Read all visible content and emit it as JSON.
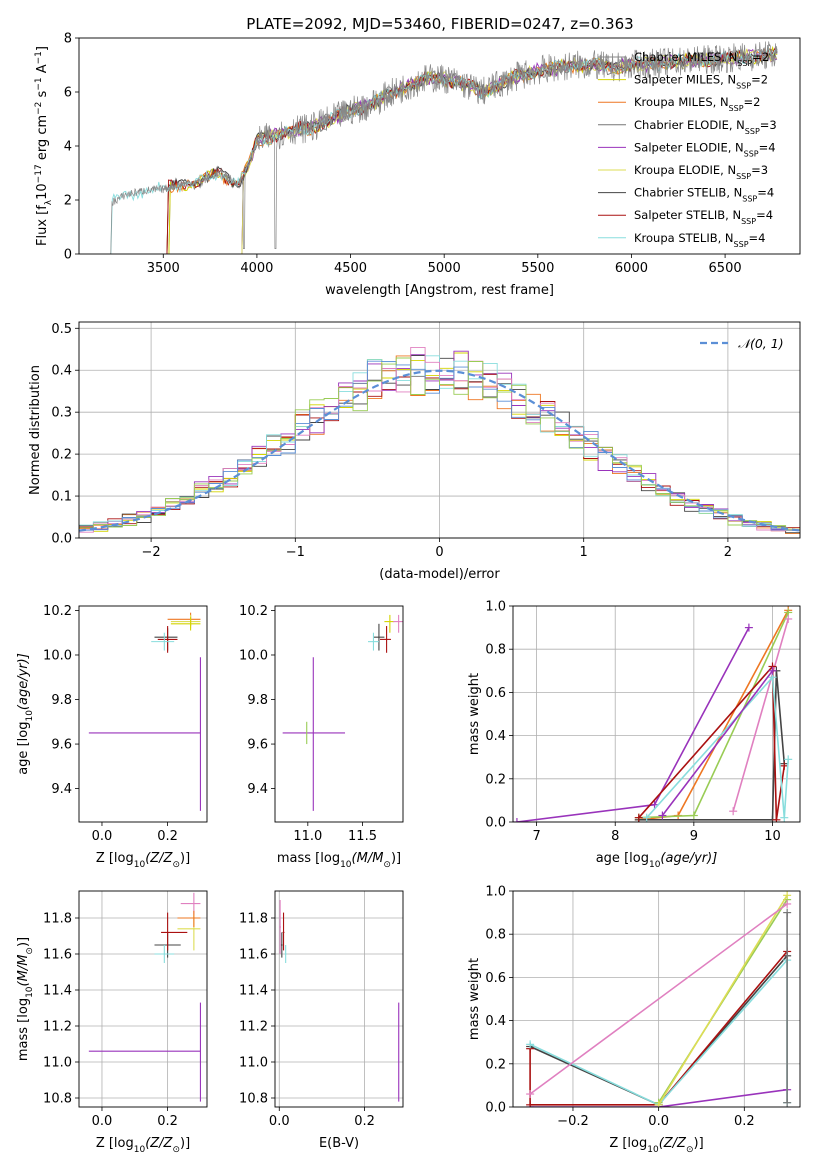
{
  "title": "PLATE=2092, MJD=53460, FIBERID=0247, z=0.363",
  "colors": {
    "chabrier_miles": "#8a8a8a",
    "salpeter_miles": "#d4d400",
    "kroupa_miles": "#ee7722",
    "chabrier_elodie": "#777777",
    "salpeter_elodie": "#9933bb",
    "kroupa_elodie": "#dddd55",
    "chabrier_stelib": "#444444",
    "salpeter_stelib": "#aa1111",
    "kroupa_stelib": "#88dddd",
    "gauss": "#5b8fd6",
    "pink": "#e080c0",
    "green": "#99cc55"
  },
  "chart_data": [
    {
      "type": "line",
      "title": "PLATE=2092, MJD=53460, FIBERID=0247, z=0.363",
      "xlabel": "wavelength [Angstrom, rest frame]",
      "ylabel": "Flux [f",
      "ylabel_sub": "λ",
      "ylabel_rest": "10",
      "ylabel_sup1": "−17",
      "ylabel_mid": " erg cm",
      "ylabel_sup2": "−2",
      "ylabel_mid2": " s",
      "ylabel_sup3": "−1",
      "ylabel_end": " A",
      "ylabel_sup4": "−1",
      "ylabel_close": "]",
      "xlim": [
        3050,
        6900
      ],
      "ylim": [
        0,
        8
      ],
      "xticks": [
        3500,
        4000,
        4500,
        5000,
        5500,
        6000,
        6500
      ],
      "yticks": [
        0,
        2,
        4,
        6,
        8
      ],
      "legend": "upper right",
      "legend_entries": [
        {
          "prefix": "Chabrier MILES, N",
          "sub": "SSP",
          "suffix": "=2",
          "color": "#8a8a8a"
        },
        {
          "prefix": "Salpeter MILES, N",
          "sub": "SSP",
          "suffix": "=2",
          "color": "#d4d400"
        },
        {
          "prefix": "Kroupa MILES, N",
          "sub": "SSP",
          "suffix": "=2",
          "color": "#ee7722"
        },
        {
          "prefix": "Chabrier ELODIE, N",
          "sub": "SSP",
          "suffix": "=3",
          "color": "#777777"
        },
        {
          "prefix": "Salpeter ELODIE, N",
          "sub": "SSP",
          "suffix": "=4",
          "color": "#9933bb"
        },
        {
          "prefix": "Kroupa ELODIE, N",
          "sub": "SSP",
          "suffix": "=3",
          "color": "#dddd55"
        },
        {
          "prefix": "Chabrier STELIB, N",
          "sub": "SSP",
          "suffix": "=4",
          "color": "#444444"
        },
        {
          "prefix": "Salpeter STELIB, N",
          "sub": "SSP",
          "suffix": "=4",
          "color": "#aa1111"
        },
        {
          "prefix": "Kroupa STELIB, N",
          "sub": "SSP",
          "suffix": "=4",
          "color": "#88dddd"
        }
      ],
      "spectrum_knots": [
        [
          3220,
          0
        ],
        [
          3225,
          1.9
        ],
        [
          3300,
          2.2
        ],
        [
          3400,
          2.35
        ],
        [
          3500,
          2.4
        ],
        [
          3600,
          2.6
        ],
        [
          3700,
          2.7
        ],
        [
          3800,
          3.0
        ],
        [
          3900,
          2.6
        ],
        [
          3950,
          3.2
        ],
        [
          4000,
          4.2
        ],
        [
          4100,
          4.4
        ],
        [
          4200,
          4.6
        ],
        [
          4300,
          4.7
        ],
        [
          4400,
          5.0
        ],
        [
          4500,
          5.3
        ],
        [
          4600,
          5.5
        ],
        [
          4700,
          5.9
        ],
        [
          4800,
          6.2
        ],
        [
          4900,
          6.5
        ],
        [
          5000,
          6.5
        ],
        [
          5100,
          6.3
        ],
        [
          5200,
          6.0
        ],
        [
          5300,
          6.3
        ],
        [
          5400,
          6.6
        ],
        [
          5500,
          6.8
        ],
        [
          5600,
          6.9
        ],
        [
          5700,
          7.0
        ],
        [
          5800,
          7.0
        ],
        [
          5900,
          6.9
        ],
        [
          6000,
          7.0
        ],
        [
          6200,
          7.1
        ],
        [
          6400,
          7.2
        ],
        [
          6600,
          7.3
        ],
        [
          6800,
          7.4
        ]
      ]
    },
    {
      "type": "line",
      "xlabel": "(data-model)/error",
      "ylabel": "Normed distribution",
      "xlim": [
        -2.5,
        2.5
      ],
      "ylim": [
        0,
        0.515
      ],
      "xticks": [
        -2,
        -1,
        0,
        1,
        2
      ],
      "xtick_labels": [
        "−2",
        "−1",
        "0",
        "1",
        "2"
      ],
      "yticks": [
        0.0,
        0.1,
        0.2,
        0.3,
        0.4,
        0.5
      ],
      "ytick_labels": [
        "0.0",
        "0.1",
        "0.2",
        "0.3",
        "0.4",
        "0.5"
      ],
      "legend_label": "𝒩(0, 1)",
      "legend": "upper right",
      "grid": true,
      "bin_width": 0.1
    },
    {
      "type": "scatter",
      "xlabel_pre": "Z [log",
      "xlabel_sub": "10",
      "xlabel_post": "(Z/Z",
      "xlabel_sub2": "⊙",
      "xlabel_end": ")]",
      "ylabel_pre": "age  [log",
      "ylabel_sub": "10",
      "ylabel_post": "(age/yr)]",
      "xlim": [
        -0.07,
        0.32
      ],
      "ylim": [
        9.25,
        10.22
      ],
      "xticks": [
        0.0,
        0.2
      ],
      "xtick_labels": [
        "0.0",
        "0.2"
      ],
      "yticks": [
        9.4,
        9.6,
        9.8,
        10.0,
        10.2
      ],
      "ytick_labels": [
        "9.4",
        "9.6",
        "9.8",
        "10.0",
        "10.2"
      ]
    },
    {
      "type": "scatter",
      "xlabel_pre": "mass [log",
      "xlabel_sub": "10",
      "xlabel_post": "(M/M",
      "xlabel_sub2": "⊙",
      "xlabel_end": ")]",
      "xlim": [
        10.7,
        11.87
      ],
      "ylim": [
        9.25,
        10.22
      ],
      "xticks": [
        11.0,
        11.5
      ],
      "xtick_labels": [
        "11.0",
        "11.5"
      ],
      "yticks": [
        9.4,
        9.6,
        9.8,
        10.0,
        10.2
      ],
      "ytick_labels": [
        "9.4",
        "9.6",
        "9.8",
        "10.0",
        "10.2"
      ]
    },
    {
      "type": "line",
      "xlabel_pre": "age  [log",
      "xlabel_sub": "10",
      "xlabel_post": "(age/yr)]",
      "ylabel": "mass weight",
      "xlim": [
        6.7,
        10.35
      ],
      "ylim": [
        0,
        1.0
      ],
      "xticks": [
        7,
        8,
        9,
        10
      ],
      "xtick_labels": [
        "7",
        "8",
        "9",
        "10"
      ],
      "yticks": [
        0.0,
        0.2,
        0.4,
        0.6,
        0.8,
        1.0
      ],
      "ytick_labels": [
        "0.0",
        "0.2",
        "0.4",
        "0.6",
        "0.8",
        "1.0"
      ],
      "grid": true
    },
    {
      "type": "scatter",
      "xlabel_pre": "Z [log",
      "xlabel_sub": "10",
      "xlabel_post": "(Z/Z",
      "xlabel_sub2": "⊙",
      "xlabel_end": ")]",
      "ylabel_pre": "mass [log",
      "ylabel_sub": "10",
      "ylabel_post": "(M/M",
      "ylabel_sub2": "⊙",
      "ylabel_end": ")]",
      "xlim": [
        -0.07,
        0.32
      ],
      "ylim": [
        10.75,
        11.95
      ],
      "xticks": [
        0.0,
        0.2
      ],
      "xtick_labels": [
        "0.0",
        "0.2"
      ],
      "yticks": [
        10.8,
        11.0,
        11.2,
        11.4,
        11.6,
        11.8
      ],
      "ytick_labels": [
        "10.8",
        "11.0",
        "11.2",
        "11.4",
        "11.6",
        "11.8"
      ],
      "grid": true
    },
    {
      "type": "scatter",
      "xlabel": "E(B-V)",
      "xlim": [
        -0.01,
        0.29
      ],
      "ylim": [
        10.75,
        11.95
      ],
      "xticks": [
        0.0,
        0.2
      ],
      "xtick_labels": [
        "0.0",
        "0.2"
      ],
      "yticks": [
        10.8,
        11.0,
        11.2,
        11.4,
        11.6,
        11.8
      ],
      "ytick_labels": [
        "10.8",
        "11.0",
        "11.2",
        "11.4",
        "11.6",
        "11.8"
      ],
      "grid": true
    },
    {
      "type": "line",
      "xlabel_pre": "Z [log",
      "xlabel_sub": "10",
      "xlabel_post": "(Z/Z",
      "xlabel_sub2": "⊙",
      "xlabel_end": ")]",
      "ylabel": "mass weight",
      "xlim": [
        -0.34,
        0.33
      ],
      "ylim": [
        0,
        1.0
      ],
      "xticks": [
        -0.2,
        0.0,
        0.2
      ],
      "xtick_labels": [
        "−0.2",
        "0.0",
        "0.2"
      ],
      "yticks": [
        0.0,
        0.2,
        0.4,
        0.6,
        0.8,
        1.0
      ],
      "ytick_labels": [
        "0.0",
        "0.2",
        "0.4",
        "0.6",
        "0.8",
        "1.0"
      ],
      "grid": true
    }
  ],
  "points": {
    "z_age": [
      {
        "c": "salpeter_elodie",
        "x": 0.3,
        "y": 9.65,
        "xe": [
          -0.04,
          0.3
        ],
        "ye": [
          9.3,
          9.99
        ]
      },
      {
        "c": "chabrier_stelib",
        "x": 0.2,
        "y": 10.08,
        "xe": [
          0.16,
          0.23
        ],
        "ye": [
          10.02,
          10.12
        ]
      },
      {
        "c": "salpeter_stelib",
        "x": 0.2,
        "y": 10.07,
        "xe": [
          0.17,
          0.23
        ],
        "ye": [
          10.01,
          10.13
        ]
      },
      {
        "c": "kroupa_stelib",
        "x": 0.19,
        "y": 10.06,
        "xe": [
          0.15,
          0.22
        ],
        "ye": [
          10.02,
          10.1
        ]
      },
      {
        "c": "kroupa_miles",
        "x": 0.27,
        "y": 10.16,
        "xe": [
          0.2,
          0.3
        ],
        "ye": [
          10.13,
          10.19
        ]
      },
      {
        "c": "kroupa_elodie",
        "x": 0.27,
        "y": 10.15,
        "xe": [
          0.21,
          0.3
        ],
        "ye": [
          10.12,
          10.18
        ]
      },
      {
        "c": "salpeter_miles",
        "x": 0.27,
        "y": 10.14,
        "xe": [
          0.21,
          0.3
        ],
        "ye": [
          10.11,
          10.17
        ]
      }
    ],
    "mass_age": [
      {
        "c": "salpeter_elodie",
        "x": 11.05,
        "y": 9.65,
        "xe": [
          10.77,
          11.34
        ],
        "ye": [
          9.3,
          9.99
        ]
      },
      {
        "c": "green",
        "x": 10.99,
        "y": 9.65,
        "xe": [
          10.99,
          10.99
        ],
        "ye": [
          9.6,
          9.7
        ]
      },
      {
        "c": "chabrier_stelib",
        "x": 11.65,
        "y": 10.08,
        "xe": [
          11.6,
          11.7
        ],
        "ye": [
          10.02,
          10.14
        ]
      },
      {
        "c": "salpeter_stelib",
        "x": 11.72,
        "y": 10.07,
        "xe": [
          11.66,
          11.76
        ],
        "ye": [
          10.01,
          10.13
        ]
      },
      {
        "c": "kroupa_stelib",
        "x": 11.6,
        "y": 10.06,
        "xe": [
          11.55,
          11.65
        ],
        "ye": [
          10.02,
          10.1
        ]
      },
      {
        "c": "salpeter_miles",
        "x": 11.75,
        "y": 10.15,
        "xe": [
          11.7,
          11.79
        ],
        "ye": [
          10.1,
          10.18
        ]
      },
      {
        "c": "pink",
        "x": 11.83,
        "y": 10.15,
        "xe": [
          11.78,
          11.88
        ],
        "ye": [
          10.1,
          10.18
        ]
      }
    ],
    "z_mass": [
      {
        "c": "salpeter_elodie",
        "x": 0.3,
        "y": 11.06,
        "xe": [
          -0.04,
          0.3
        ],
        "ye": [
          10.78,
          11.33
        ]
      },
      {
        "c": "chabrier_stelib",
        "x": 0.2,
        "y": 11.65,
        "xe": [
          0.16,
          0.24
        ],
        "ye": [
          11.58,
          11.72
        ]
      },
      {
        "c": "salpeter_stelib",
        "x": 0.2,
        "y": 11.72,
        "xe": [
          0.18,
          0.26
        ],
        "ye": [
          11.62,
          11.83
        ]
      },
      {
        "c": "kroupa_stelib",
        "x": 0.19,
        "y": 11.6,
        "xe": [
          0.16,
          0.22
        ],
        "ye": [
          11.55,
          11.65
        ]
      },
      {
        "c": "kroupa_elodie",
        "x": 0.28,
        "y": 11.74,
        "xe": [
          0.23,
          0.3
        ],
        "ye": [
          11.62,
          11.82
        ]
      },
      {
        "c": "pink",
        "x": 0.28,
        "y": 11.88,
        "xe": [
          0.24,
          0.3
        ],
        "ye": [
          11.82,
          11.94
        ]
      },
      {
        "c": "kroupa_miles",
        "x": 0.28,
        "y": 11.8,
        "xe": [
          0.23,
          0.3
        ],
        "ye": [
          11.75,
          11.84
        ]
      }
    ],
    "ebv_mass": [
      {
        "c": "salpeter_elodie",
        "x": 0.28,
        "y": 11.06,
        "xe": [
          0.28,
          0.28
        ],
        "ye": [
          10.78,
          11.33
        ]
      },
      {
        "c": "pink",
        "x": 0.002,
        "y": 11.75,
        "xe": [
          0.0,
          0.004
        ],
        "ye": [
          11.6,
          11.9
        ]
      },
      {
        "c": "salpeter_stelib",
        "x": 0.01,
        "y": 11.72,
        "xe": [
          0.008,
          0.012
        ],
        "ye": [
          11.62,
          11.83
        ]
      },
      {
        "c": "kroupa_stelib",
        "x": 0.015,
        "y": 11.6,
        "xe": [
          0.013,
          0.017
        ],
        "ye": [
          11.55,
          11.65
        ]
      },
      {
        "c": "chabrier_stelib",
        "x": 0.006,
        "y": 11.65,
        "xe": [
          0.004,
          0.008
        ],
        "ye": [
          11.58,
          11.72
        ]
      }
    ]
  },
  "weights_age": [
    {
      "c": "salpeter_elodie",
      "pts": [
        [
          6.75,
          0.0
        ],
        [
          8.5,
          0.08
        ],
        [
          9.7,
          0.9
        ]
      ]
    },
    {
      "c": "kroupa_miles",
      "pts": [
        [
          8.3,
          0.01
        ],
        [
          8.8,
          0.03
        ],
        [
          10.2,
          0.98
        ]
      ]
    },
    {
      "c": "green",
      "pts": [
        [
          8.3,
          0.02
        ],
        [
          9.0,
          0.03
        ],
        [
          10.2,
          0.97
        ]
      ]
    },
    {
      "c": "pink",
      "pts": [
        [
          9.5,
          0.05
        ],
        [
          10.2,
          0.94
        ]
      ]
    },
    {
      "c": "chabrier_stelib",
      "pts": [
        [
          8.3,
          0.01
        ],
        [
          10.0,
          0.01
        ],
        [
          10.05,
          0.7
        ],
        [
          10.15,
          0.27
        ]
      ]
    },
    {
      "c": "salpeter_stelib",
      "pts": [
        [
          8.3,
          0.02
        ],
        [
          10.0,
          0.72
        ],
        [
          10.05,
          0.01
        ],
        [
          10.15,
          0.26
        ]
      ]
    },
    {
      "c": "kroupa_stelib",
      "pts": [
        [
          8.4,
          0.02
        ],
        [
          10.0,
          0.67
        ],
        [
          10.15,
          0.02
        ],
        [
          10.2,
          0.29
        ]
      ]
    },
    {
      "c": "salpeter_elodie",
      "pts": [
        [
          8.6,
          0.03
        ],
        [
          10.0,
          0.7
        ]
      ]
    }
  ],
  "weights_z": [
    {
      "c": "salpeter_elodie",
      "pts": [
        [
          -0.3,
          0.0
        ],
        [
          0.0,
          0.0
        ],
        [
          0.3,
          0.08
        ]
      ]
    },
    {
      "c": "chabrier_stelib",
      "pts": [
        [
          -0.3,
          0.28
        ],
        [
          0.0,
          0.01
        ],
        [
          0.3,
          0.7
        ]
      ]
    },
    {
      "c": "salpeter_stelib",
      "pts": [
        [
          -0.3,
          0.27
        ],
        [
          -0.3,
          0.01
        ],
        [
          0.0,
          0.01
        ],
        [
          0.3,
          0.72
        ]
      ]
    },
    {
      "c": "kroupa_stelib",
      "pts": [
        [
          -0.3,
          0.29
        ],
        [
          0.0,
          0.01
        ],
        [
          0.3,
          0.68
        ],
        [
          0.3,
          0.02
        ]
      ]
    },
    {
      "c": "green",
      "pts": [
        [
          0.0,
          0.02
        ],
        [
          0.3,
          0.96
        ]
      ]
    },
    {
      "c": "kroupa_elodie",
      "pts": [
        [
          0.0,
          0.01
        ],
        [
          0.3,
          0.98
        ]
      ]
    },
    {
      "c": "pink",
      "pts": [
        [
          -0.3,
          0.06
        ],
        [
          0.3,
          0.94
        ]
      ]
    },
    {
      "c": "chabrier_elodie",
      "pts": [
        [
          0.3,
          0.02
        ],
        [
          0.3,
          0.9
        ]
      ]
    }
  ]
}
